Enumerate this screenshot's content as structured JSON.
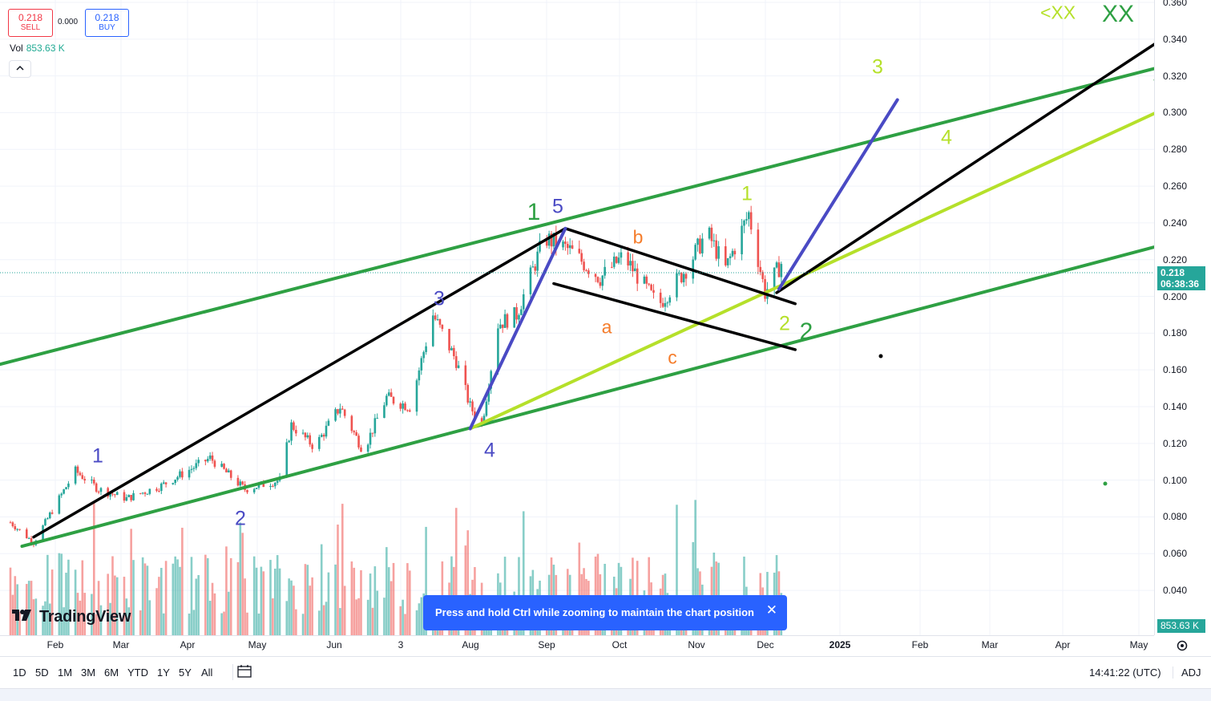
{
  "header": {
    "sell_price": "0.218",
    "sell_label": "SELL",
    "spread": "0.000",
    "buy_price": "0.218",
    "buy_label": "BUY",
    "vol_label": "Vol",
    "vol_value": "853.63 K",
    "collapse_icon": "chevron-up-icon"
  },
  "logo_text": "TradingView",
  "toast": {
    "message": "Press and hold Ctrl while zooming to maintain the chart position",
    "close_icon": "close-icon"
  },
  "price_axis": {
    "ticks": [
      "0.360",
      "0.340",
      "0.320",
      "0.300",
      "0.280",
      "0.260",
      "0.240",
      "0.220",
      "0.200",
      "0.180",
      "0.160",
      "0.140",
      "0.120",
      "0.100",
      "0.080",
      "0.060",
      "0.040"
    ],
    "last_price": "0.218",
    "countdown": "06:38:36",
    "volume_badge": "853.63 K"
  },
  "time_axis": [
    "Feb",
    "Mar",
    "Apr",
    "May",
    "Jun",
    "3",
    "Aug",
    "Sep",
    "Oct",
    "Nov",
    "Dec",
    "2025",
    "Feb",
    "Mar",
    "Apr",
    "May"
  ],
  "toolbar": {
    "timeframes": [
      "1D",
      "5D",
      "1M",
      "3M",
      "6M",
      "YTD",
      "1Y",
      "5Y",
      "All"
    ],
    "calendar_icon": "calendar-range-icon",
    "time": "14:41:22 (UTC)",
    "adj_label": "ADJ",
    "settings_icon": "settings-icon"
  },
  "annotations": {
    "wave_1_blue": "1",
    "wave_2_blue": "2",
    "wave_3_blue": "3",
    "wave_4_blue": "4",
    "wave_5_blue": "5",
    "wave_1_green": "1",
    "wave_2_green": "2",
    "wave_a": "a",
    "wave_b": "b",
    "wave_c": "c",
    "wave_1_lime": "1",
    "wave_2_lime": "2",
    "wave_3_lime": "3",
    "wave_4_lime": "4",
    "xx_small": "<XX",
    "xx_large": "XX"
  },
  "colors": {
    "up": "#26a69a",
    "down": "#ef5350",
    "green_line": "#2ea043",
    "lime_line": "#b5e02a",
    "blue_line": "#4a4ac4",
    "black_line": "#000000",
    "orange": "#f57c2a",
    "accent_blue": "#2962ff"
  },
  "chart_data": {
    "type": "candlestick",
    "ylim": [
      0.03,
      0.36
    ],
    "date_range": [
      "2024-01-15",
      "2025-05-15"
    ],
    "last_price": 0.218,
    "ohlc_path": [
      [
        "2024-01-15",
        0.077
      ],
      [
        "2024-01-25",
        0.066
      ],
      [
        "2024-02-05",
        0.09
      ],
      [
        "2024-02-12",
        0.105
      ],
      [
        "2024-02-22",
        0.095
      ],
      [
        "2024-03-05",
        0.09
      ],
      [
        "2024-03-20",
        0.097
      ],
      [
        "2024-04-10",
        0.112
      ],
      [
        "2024-04-25",
        0.095
      ],
      [
        "2024-05-10",
        0.1
      ],
      [
        "2024-05-15",
        0.13
      ],
      [
        "2024-05-25",
        0.118
      ],
      [
        "2024-06-05",
        0.14
      ],
      [
        "2024-06-15",
        0.116
      ],
      [
        "2024-06-25",
        0.145
      ],
      [
        "2024-07-05",
        0.14
      ],
      [
        "2024-07-15",
        0.19
      ],
      [
        "2024-07-25",
        0.165
      ],
      [
        "2024-07-31",
        0.14
      ],
      [
        "2024-08-05",
        0.13
      ],
      [
        "2024-08-12",
        0.185
      ],
      [
        "2024-08-20",
        0.19
      ],
      [
        "2024-09-01",
        0.232
      ],
      [
        "2024-09-12",
        0.225
      ],
      [
        "2024-09-25",
        0.21
      ],
      [
        "2024-10-05",
        0.222
      ],
      [
        "2024-10-20",
        0.195
      ],
      [
        "2024-11-01",
        0.215
      ],
      [
        "2024-11-10",
        0.235
      ],
      [
        "2024-11-18",
        0.215
      ],
      [
        "2024-11-28",
        0.245
      ],
      [
        "2024-12-05",
        0.202
      ],
      [
        "2024-12-12",
        0.218
      ]
    ],
    "volume_max_k": 1200,
    "trendlines": [
      {
        "name": "channel-upper-green",
        "from": [
          "2024-01-01",
          0.16
        ],
        "to": [
          "2025-05-31",
          0.327
        ]
      },
      {
        "name": "channel-lower-green",
        "from": [
          "2024-01-20",
          0.064
        ],
        "to": [
          "2025-05-31",
          0.23
        ]
      },
      {
        "name": "lime-trend",
        "from": [
          "2024-07-31",
          0.128
        ],
        "to": [
          "2025-05-31",
          0.305
        ]
      },
      {
        "name": "black-impulse",
        "from": [
          "2024-01-25",
          0.069
        ],
        "to": [
          "2024-09-10",
          0.237
        ]
      },
      {
        "name": "black-channel-top",
        "from": [
          "2024-09-10",
          0.237
        ],
        "to": [
          "2024-12-18",
          0.196
        ]
      },
      {
        "name": "black-channel-bottom",
        "from": [
          "2024-09-05",
          0.207
        ],
        "to": [
          "2024-12-18",
          0.171
        ]
      },
      {
        "name": "black-projection",
        "from": [
          "2024-12-10",
          0.202
        ],
        "to": [
          "2025-05-31",
          0.345
        ]
      },
      {
        "name": "blue-wave",
        "from": [
          "2024-07-31",
          0.128
        ],
        "to": [
          "2024-09-10",
          0.237
        ]
      },
      {
        "name": "blue-projection",
        "from": [
          "2024-12-11",
          0.204
        ],
        "to": [
          "2025-01-31",
          0.307
        ]
      }
    ],
    "markers": [
      {
        "label": "1",
        "color": "blue",
        "at": [
          "2024-02-25",
          0.12
        ]
      },
      {
        "label": "2",
        "color": "blue",
        "at": [
          "2024-05-05",
          0.086
        ]
      },
      {
        "label": "3",
        "color": "blue",
        "at": [
          "2024-07-15",
          0.202
        ]
      },
      {
        "label": "4",
        "color": "blue",
        "at": [
          "2024-07-31",
          0.123
        ]
      },
      {
        "label": "5",
        "color": "blue",
        "at": [
          "2024-09-05",
          0.25
        ]
      },
      {
        "label": "1",
        "color": "green",
        "at": [
          "2024-08-28",
          0.247
        ]
      },
      {
        "label": "2",
        "color": "green",
        "at": [
          "2024-12-15",
          0.187
        ]
      },
      {
        "label": "a",
        "color": "orange",
        "at": [
          "2024-09-18",
          0.188
        ]
      },
      {
        "label": "b",
        "color": "orange",
        "at": [
          "2024-10-05",
          0.235
        ]
      },
      {
        "label": "c",
        "color": "orange",
        "at": [
          "2024-10-30",
          0.166
        ]
      },
      {
        "label": "1",
        "color": "lime",
        "at": [
          "2024-11-30",
          0.256
        ]
      },
      {
        "label": "2",
        "color": "lime",
        "at": [
          "2024-12-12",
          0.191
        ]
      },
      {
        "label": "3",
        "color": "lime",
        "at": [
          "2025-02-01",
          0.326
        ]
      },
      {
        "label": "4",
        "color": "lime",
        "at": [
          "2025-02-23",
          0.282
        ]
      }
    ]
  }
}
